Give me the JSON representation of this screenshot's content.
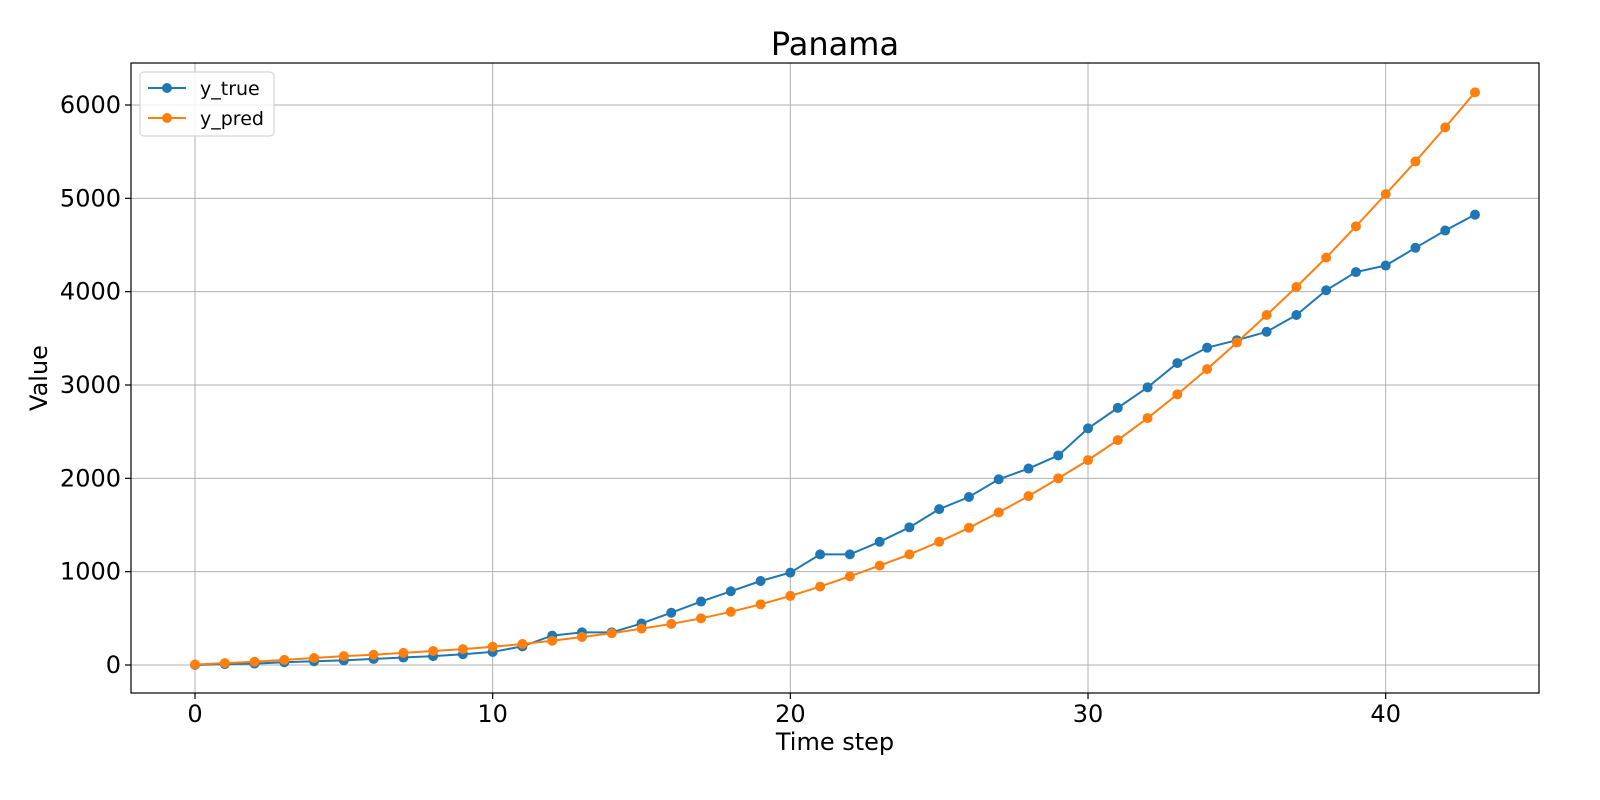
{
  "chart_data": {
    "type": "line",
    "title": "Panama",
    "xlabel": "Time step",
    "ylabel": "Value",
    "xlim": [
      -2.15,
      45.15
    ],
    "ylim": [
      -300,
      6450
    ],
    "xticks": [
      0,
      10,
      20,
      30,
      40
    ],
    "yticks": [
      0,
      1000,
      2000,
      3000,
      4000,
      5000,
      6000
    ],
    "grid": true,
    "legend_position": "top-left",
    "series": [
      {
        "name": "y_true",
        "color": "#1f77b4",
        "marker": "circle",
        "x": [
          0,
          1,
          2,
          3,
          4,
          5,
          6,
          7,
          8,
          9,
          10,
          11,
          12,
          13,
          14,
          15,
          16,
          17,
          18,
          19,
          20,
          21,
          22,
          23,
          24,
          25,
          26,
          27,
          28,
          29,
          30,
          31,
          32,
          33,
          34,
          35,
          36,
          37,
          38,
          39,
          40,
          41,
          42,
          43
        ],
        "values": [
          0,
          10,
          15,
          30,
          40,
          50,
          65,
          80,
          95,
          115,
          140,
          200,
          315,
          350,
          350,
          445,
          560,
          680,
          790,
          900,
          990,
          1185,
          1185,
          1320,
          1475,
          1670,
          1800,
          1990,
          2105,
          2245,
          2535,
          2755,
          2975,
          3235,
          3400,
          3480,
          3570,
          3750,
          4015,
          4210,
          4280,
          4470,
          4655,
          4825
        ]
      },
      {
        "name": "y_pred",
        "color": "#ff7f0e",
        "marker": "circle",
        "x": [
          0,
          1,
          2,
          3,
          4,
          5,
          6,
          7,
          8,
          9,
          10,
          11,
          12,
          13,
          14,
          15,
          16,
          17,
          18,
          19,
          20,
          21,
          22,
          23,
          24,
          25,
          26,
          27,
          28,
          29,
          30,
          31,
          32,
          33,
          34,
          35,
          36,
          37,
          38,
          39,
          40,
          41,
          42,
          43
        ],
        "values": [
          5,
          20,
          35,
          55,
          75,
          95,
          110,
          130,
          150,
          170,
          195,
          225,
          260,
          300,
          340,
          390,
          440,
          500,
          570,
          650,
          740,
          840,
          950,
          1065,
          1185,
          1320,
          1470,
          1635,
          1810,
          2000,
          2195,
          2410,
          2645,
          2900,
          3170,
          3455,
          3750,
          4050,
          4365,
          4700,
          5045,
          5395,
          5760,
          6135
        ]
      }
    ]
  }
}
